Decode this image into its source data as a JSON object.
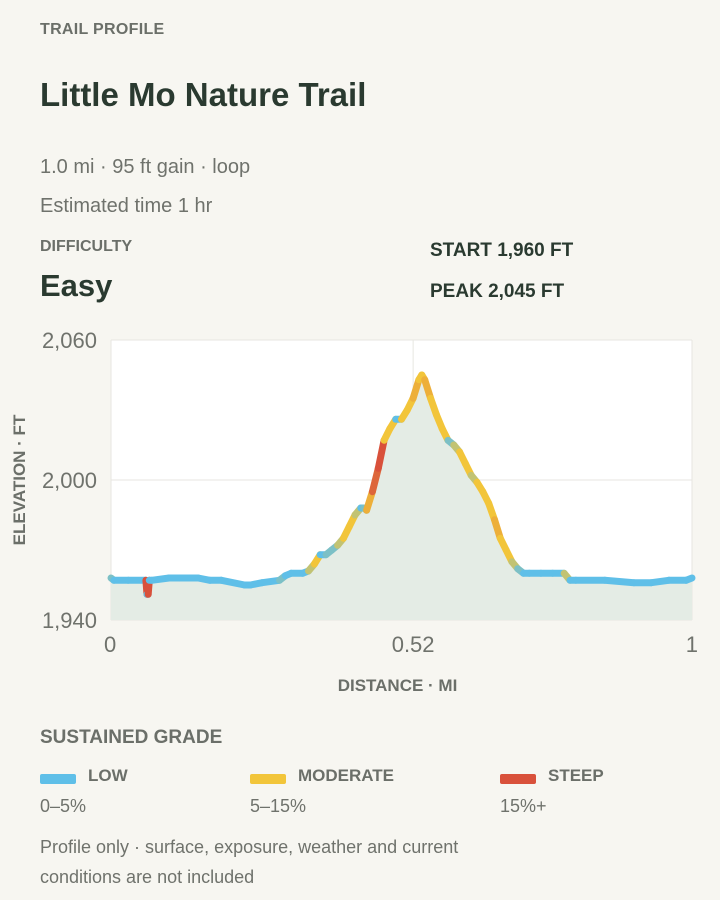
{
  "header": {
    "eyebrow": "TRAIL PROFILE",
    "title": "Little Mo Nature Trail",
    "summary": "1.0 mi · 95 ft gain · loop",
    "estimate": "Estimated time 1 hr"
  },
  "difficulty": {
    "label": "DIFFICULTY",
    "value": "Easy"
  },
  "stats": {
    "start": "START 1,960 FT",
    "peak": "PEAK 2,045 FT"
  },
  "chart_data": {
    "type": "line",
    "title": "",
    "xlabel": "DISTANCE · MI",
    "ylabel": "ELEVATION · FT",
    "xlim": [
      0,
      1
    ],
    "ylim": [
      1940,
      2060
    ],
    "x_ticks": [
      0,
      0.52,
      1
    ],
    "x_tick_labels": [
      "0",
      "0.52",
      "1"
    ],
    "y_ticks": [
      1940,
      2000,
      2060
    ],
    "y_tick_labels": [
      "1,940",
      "2,000",
      "2,060"
    ],
    "grid": true,
    "fill_under": true,
    "series": [
      {
        "x": [
          0,
          0.005,
          0.03,
          0.06,
          0.062,
          0.064,
          0.066,
          0.07,
          0.1,
          0.12,
          0.15,
          0.17,
          0.19,
          0.23,
          0.24,
          0.26,
          0.29,
          0.3,
          0.31,
          0.33,
          0.34,
          0.35,
          0.36,
          0.37,
          0.38,
          0.39,
          0.4,
          0.41,
          0.42,
          0.43,
          0.435,
          0.44,
          0.45,
          0.46,
          0.47,
          0.48,
          0.49,
          0.5,
          0.51,
          0.52,
          0.53,
          0.535,
          0.54,
          0.55,
          0.56,
          0.57,
          0.58,
          0.59,
          0.6,
          0.61,
          0.62,
          0.63,
          0.64,
          0.65,
          0.66,
          0.67,
          0.68,
          0.69,
          0.7,
          0.71,
          0.72,
          0.74,
          0.76,
          0.78,
          0.79,
          0.8,
          0.85,
          0.9,
          0.93,
          0.96,
          0.99,
          1
        ],
        "y": [
          1958,
          1957,
          1957,
          1957,
          1951,
          1951,
          1957,
          1957,
          1958,
          1958,
          1958,
          1957,
          1957,
          1955,
          1955,
          1956,
          1957,
          1959,
          1960,
          1960,
          1961,
          1964,
          1968,
          1968,
          1970,
          1972,
          1975,
          1980,
          1985,
          1988,
          1988,
          1987,
          1995,
          2005,
          2017,
          2022,
          2026,
          2026,
          2030,
          2035,
          2043,
          2045,
          2043,
          2035,
          2028,
          2022,
          2017,
          2015,
          2012,
          2007,
          2002,
          1999,
          1995,
          1990,
          1983,
          1975,
          1970,
          1965,
          1962,
          1960,
          1960,
          1960,
          1960,
          1960,
          1957,
          1957,
          1957,
          1956,
          1956,
          1957,
          1957,
          1958
        ]
      }
    ],
    "grade_bands": [
      {
        "name": "LOW",
        "range": "0–5%",
        "color": "#5fbfe8"
      },
      {
        "name": "MODERATE",
        "range": "5–15%",
        "color": "#f2c53a"
      },
      {
        "name": "STEEP",
        "range": "15%+",
        "color": "#d9513b"
      }
    ]
  },
  "legend": {
    "title": "SUSTAINED GRADE",
    "items": [
      {
        "name": "LOW",
        "range": "0–5%",
        "color": "#5fbfe8"
      },
      {
        "name": "MODERATE",
        "range": "5–15%",
        "color": "#f2c53a"
      },
      {
        "name": "STEEP",
        "range": "15%+",
        "color": "#d9513b"
      }
    ]
  },
  "footnote": "Profile only · surface, exposure, weather and current conditions are not included"
}
